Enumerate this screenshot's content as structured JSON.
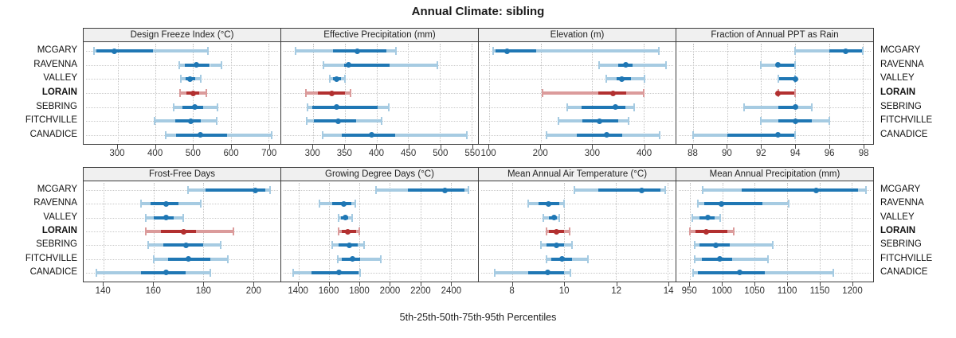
{
  "title": "Annual Climate: sibling",
  "caption": "5th-25th-50th-75th-95th Percentiles",
  "stations": [
    "MCGARY",
    "RAVENNA",
    "VALLEY",
    "LORAIN",
    "SEBRING",
    "FITCHVILLE",
    "CANADICE"
  ],
  "highlighted_station": "LORAIN",
  "colors": {
    "series": "#1F77B4",
    "series_light": "#A6CBE2",
    "highlight": "#B23030",
    "highlight_light": "#DB9B9B",
    "strip_bg": "#F0F0F0",
    "grid": "#C9C9C9",
    "border": "#3C3C3C"
  },
  "chart_data": {
    "type": "scatter",
    "subtype": "trellis-percentile-dotplot",
    "percentiles": [
      "p5",
      "p25",
      "p50",
      "p75",
      "p95"
    ],
    "layout": {
      "rows": 2,
      "cols": 4,
      "grid": "dotted",
      "station_labels": "both-sides"
    },
    "panels": [
      {
        "title": "Design Freeze Index (°C)",
        "row": 0,
        "col": 0,
        "xlim": [
          210,
          732
        ],
        "ticks": [
          300,
          400,
          500,
          600,
          700
        ],
        "values": [
          [
            238,
            243,
            292,
            394,
            540
          ],
          [
            463,
            478,
            508,
            545,
            575
          ],
          [
            468,
            480,
            492,
            506,
            520
          ],
          [
            465,
            483,
            500,
            517,
            535
          ],
          [
            448,
            472,
            505,
            528,
            565
          ],
          [
            398,
            452,
            495,
            520,
            563
          ],
          [
            428,
            455,
            520,
            590,
            708
          ]
        ]
      },
      {
        "title": "Effective Precipitation (mm)",
        "row": 0,
        "col": 1,
        "xlim": [
          250,
          560
        ],
        "ticks": [
          300,
          350,
          400,
          450,
          500,
          550
        ],
        "values": [
          [
            272,
            332,
            370,
            416,
            431
          ],
          [
            316,
            349,
            356,
            421,
            496
          ],
          [
            326,
            331,
            337,
            344,
            351
          ],
          [
            289,
            308,
            330,
            350,
            359
          ],
          [
            292,
            299,
            337,
            402,
            420
          ],
          [
            290,
            301,
            340,
            368,
            408
          ],
          [
            315,
            346,
            393,
            430,
            543
          ]
        ]
      },
      {
        "title": "Elevation (m)",
        "row": 0,
        "col": 2,
        "xlim": [
          80,
          462
        ],
        "ticks": [
          100,
          200,
          300,
          400
        ],
        "values": [
          [
            108,
            112,
            135,
            192,
            430
          ],
          [
            313,
            350,
            365,
            378,
            444
          ],
          [
            328,
            348,
            358,
            375,
            402
          ],
          [
            203,
            312,
            341,
            366,
            400
          ],
          [
            252,
            279,
            345,
            365,
            382
          ],
          [
            234,
            281,
            314,
            351,
            370
          ],
          [
            211,
            270,
            328,
            358,
            431
          ]
        ]
      },
      {
        "title": "Fraction of Annual PPT as Rain",
        "row": 0,
        "col": 3,
        "xlim": [
          87,
          98.6
        ],
        "ticks": [
          88,
          90,
          92,
          94,
          96,
          98
        ],
        "values": [
          [
            94,
            96,
            97,
            98,
            98
          ],
          [
            92,
            93,
            93,
            94,
            94
          ],
          [
            93,
            93,
            94,
            94,
            94
          ],
          [
            93,
            93,
            93,
            94,
            94
          ],
          [
            91,
            93,
            94,
            94,
            95
          ],
          [
            92,
            93,
            94,
            95,
            96
          ],
          [
            88,
            90,
            93,
            94,
            94
          ]
        ]
      },
      {
        "title": "Frost-Free Days",
        "row": 1,
        "col": 0,
        "xlim": [
          132,
          211
        ],
        "ticks": [
          140,
          160,
          180,
          200
        ],
        "values": [
          [
            174,
            181,
            201,
            205,
            207
          ],
          [
            155,
            159,
            165,
            170,
            179
          ],
          [
            157,
            160,
            165,
            168,
            172
          ],
          [
            157,
            163,
            172,
            177,
            192
          ],
          [
            158,
            164,
            173,
            180,
            187
          ],
          [
            160,
            166,
            174,
            183,
            190
          ],
          [
            137,
            155,
            165,
            173,
            183
          ]
        ]
      },
      {
        "title": "Growing Degree Days (°C)",
        "row": 1,
        "col": 1,
        "xlim": [
          1285,
          2580
        ],
        "ticks": [
          1400,
          1600,
          1800,
          2000,
          2200,
          2400
        ],
        "values": [
          [
            1910,
            2120,
            2360,
            2490,
            2515
          ],
          [
            1535,
            1620,
            1695,
            1745,
            1775
          ],
          [
            1660,
            1678,
            1705,
            1728,
            1750
          ],
          [
            1665,
            1685,
            1725,
            1778,
            1800
          ],
          [
            1620,
            1660,
            1735,
            1788,
            1830
          ],
          [
            1655,
            1685,
            1755,
            1805,
            1940
          ],
          [
            1365,
            1485,
            1665,
            1795,
            1805
          ]
        ]
      },
      {
        "title": "Mean Annual Air Temperature (°C)",
        "row": 1,
        "col": 2,
        "xlim": [
          6.7,
          14.3
        ],
        "ticks": [
          8,
          10,
          12,
          14
        ],
        "values": [
          [
            10.4,
            11.3,
            13.0,
            13.7,
            13.9
          ],
          [
            8.6,
            9.0,
            9.4,
            9.8,
            10.0
          ],
          [
            9.2,
            9.4,
            9.6,
            9.7,
            9.8
          ],
          [
            9.3,
            9.4,
            9.7,
            10.0,
            10.2
          ],
          [
            9.1,
            9.3,
            9.7,
            10.0,
            10.3
          ],
          [
            9.3,
            9.5,
            9.9,
            10.3,
            10.9
          ],
          [
            7.3,
            8.6,
            9.35,
            10.0,
            10.25
          ]
        ]
      },
      {
        "title": "Mean Annual Precipitation (mm)",
        "row": 1,
        "col": 3,
        "xlim": [
          929,
          1233
        ],
        "ticks": [
          950,
          1000,
          1050,
          1100,
          1150,
          1200
        ],
        "values": [
          [
            970,
            1030,
            1145,
            1210,
            1222
          ],
          [
            962,
            972,
            998,
            1062,
            1103
          ],
          [
            953,
            965,
            977,
            988,
            997
          ],
          [
            950,
            958,
            975,
            1008,
            1018
          ],
          [
            957,
            965,
            990,
            1012,
            1078
          ],
          [
            957,
            968,
            996,
            1015,
            1070
          ],
          [
            955,
            962,
            1027,
            1066,
            1171
          ]
        ]
      }
    ]
  }
}
